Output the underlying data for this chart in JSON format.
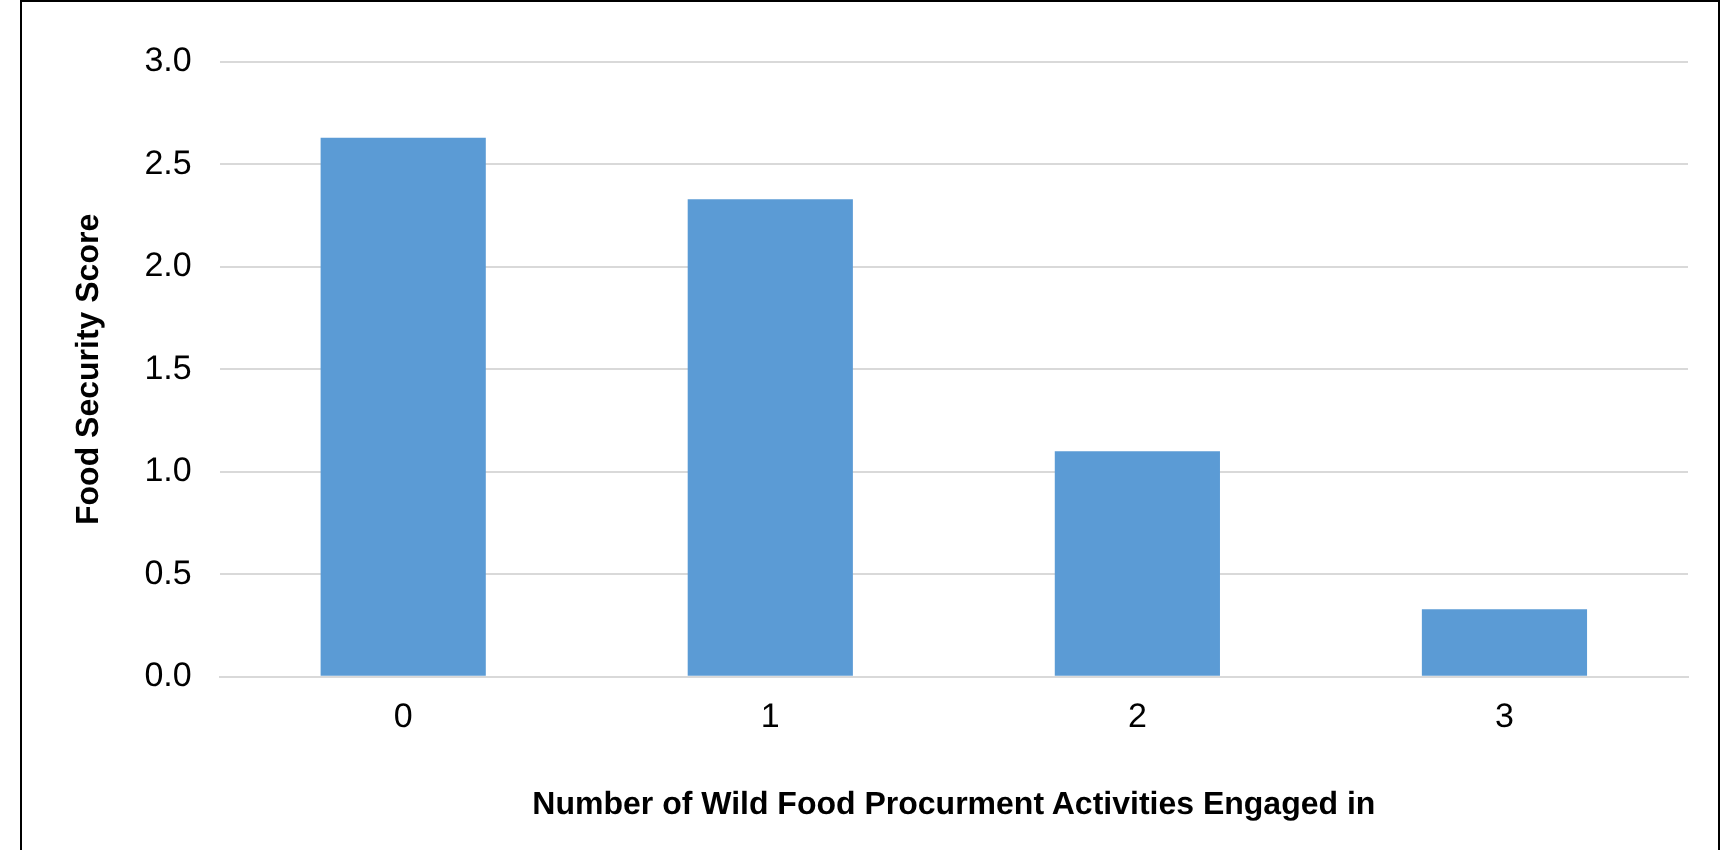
{
  "chart_data": {
    "type": "bar",
    "xlabel": "Number of Wild Food Procurment Activities Engaged in",
    "ylabel": "Food Security Score",
    "categories": [
      "0",
      "1",
      "2",
      "3"
    ],
    "values": [
      2.63,
      2.33,
      1.1,
      0.33
    ],
    "color": "#5b9bd5",
    "ylim": [
      0,
      3
    ],
    "yticks": [
      {
        "value": 0,
        "label": "0.0"
      },
      {
        "value": 0.5,
        "label": "0.5"
      },
      {
        "value": 1,
        "label": "1.0"
      },
      {
        "value": 1.5,
        "label": "1.5"
      },
      {
        "value": 2,
        "label": "2.0"
      },
      {
        "value": 2.5,
        "label": "2.5"
      },
      {
        "value": 3,
        "label": "3.0"
      }
    ],
    "grid": "y",
    "legend": false
  }
}
